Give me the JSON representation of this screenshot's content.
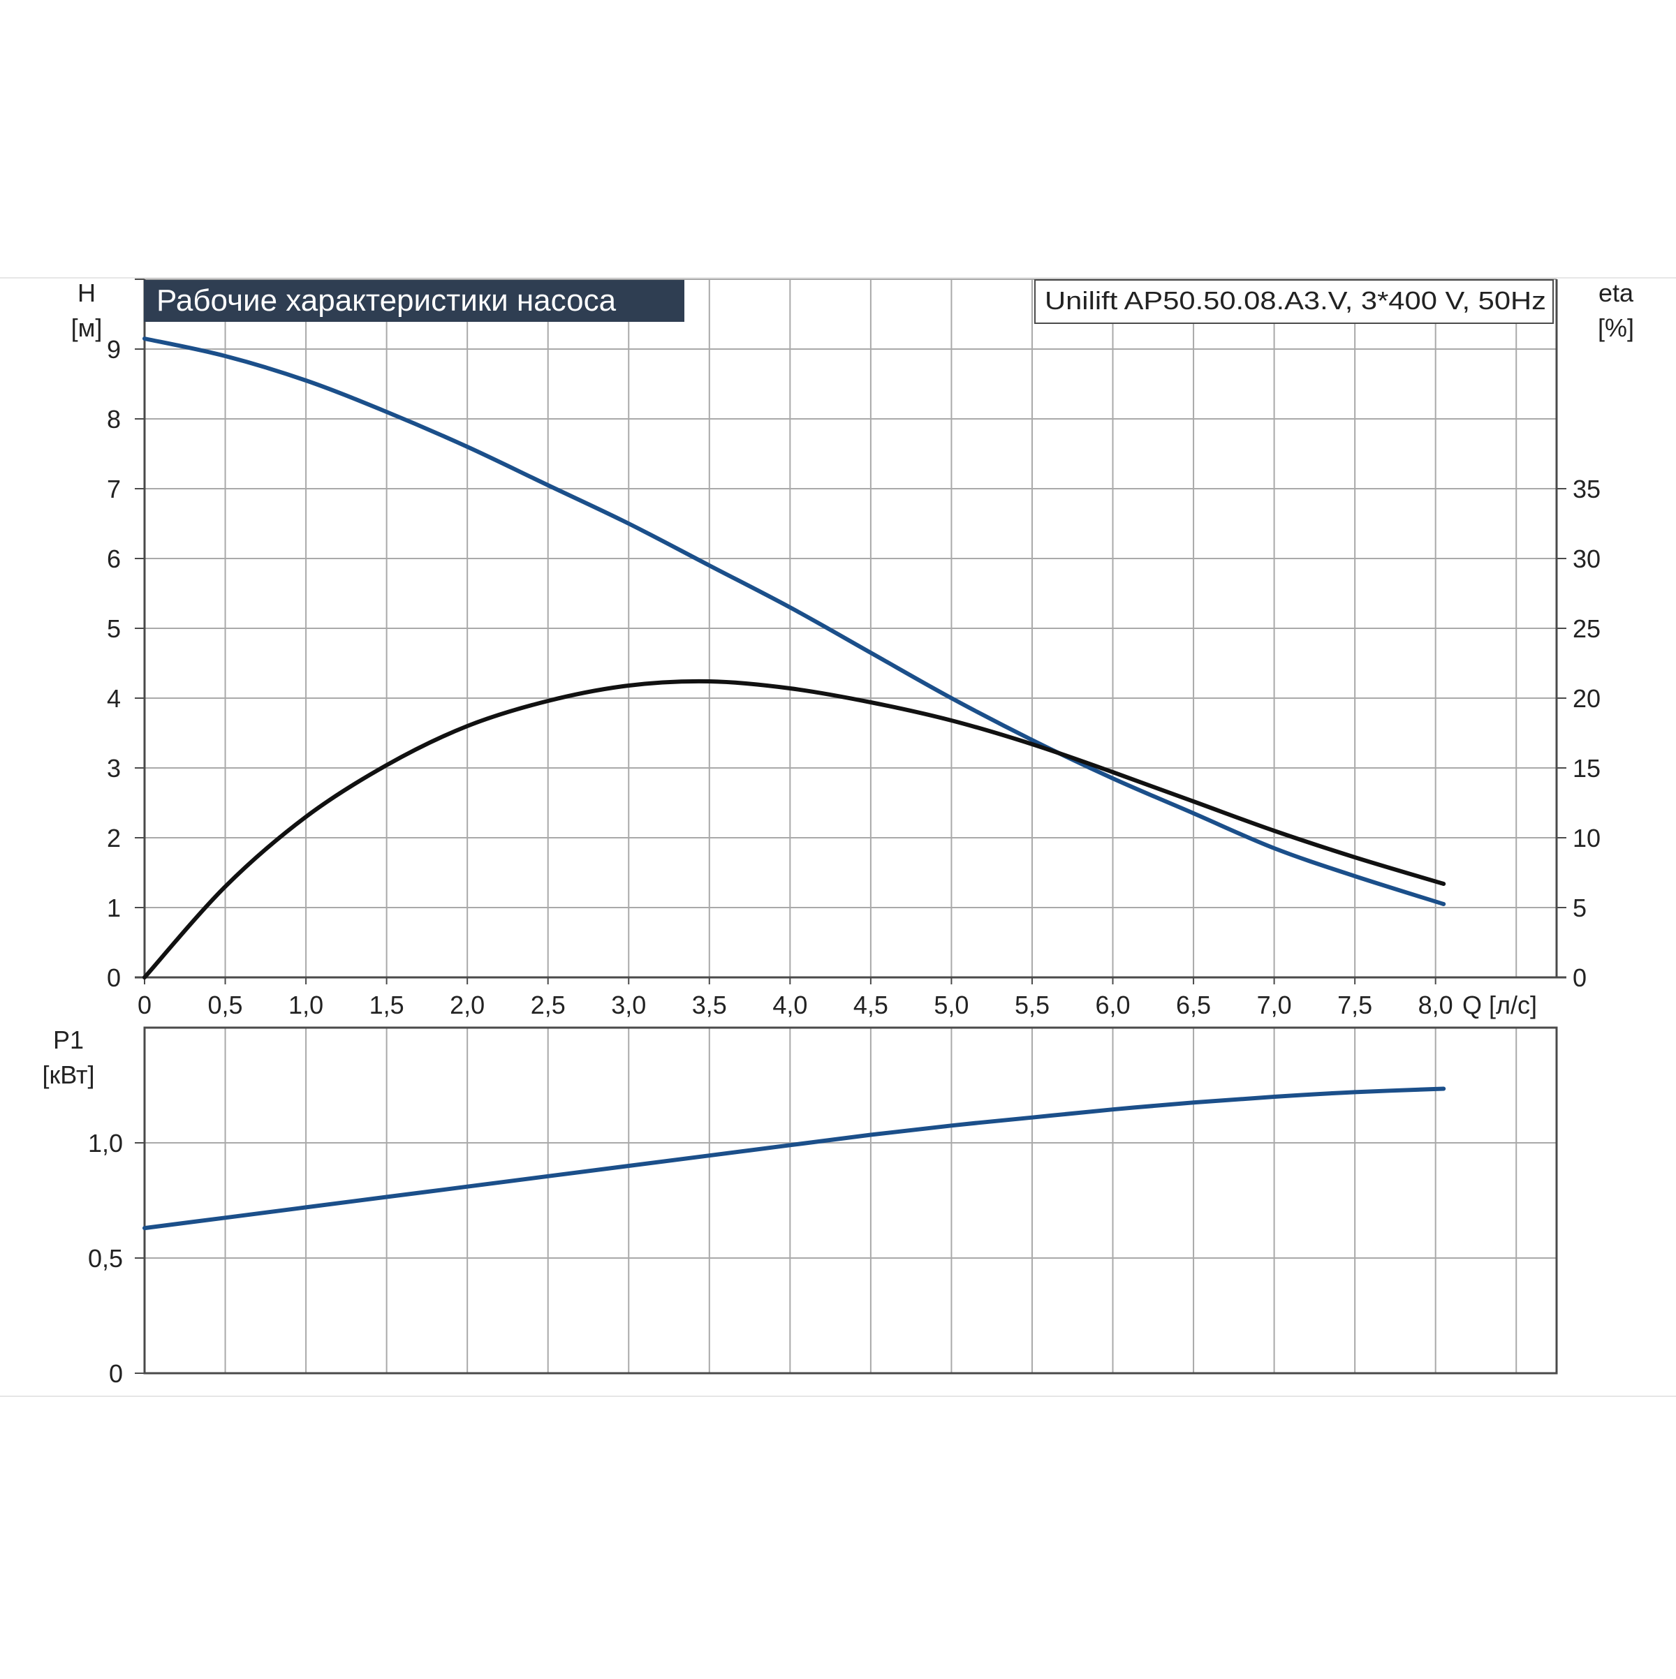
{
  "colors": {
    "background": "#ffffff",
    "grid": "#a9a9a9",
    "axis": "#4a4a4a",
    "title_bg": "#2f3e52",
    "title_text": "#ffffff",
    "head_curve": "#1b4f8a",
    "eta_curve": "#111111",
    "power_curve": "#1b4f8a"
  },
  "chart_data": [
    {
      "type": "line",
      "title": "Рабочие характеристики насоса",
      "subtitle": "Unilift AP50.50.08.A3.V, 3*400 V, 50Hz",
      "xlabel": "Q [л/с]",
      "ylabel": "H [м]",
      "ylabel_right": "eta [%]",
      "xlim": [
        0,
        8.75
      ],
      "ylim": [
        0,
        10
      ],
      "ylim_right": [
        0,
        50
      ],
      "grid": true,
      "x_ticks": [
        "0",
        "0,5",
        "1,0",
        "1,5",
        "2,0",
        "2,5",
        "3,0",
        "3,5",
        "4,0",
        "4,5",
        "5,0",
        "5,5",
        "6,0",
        "6,5",
        "7,0",
        "7,5",
        "8,0"
      ],
      "y_ticks": [
        "0",
        "1",
        "2",
        "3",
        "4",
        "5",
        "6",
        "7",
        "8",
        "9"
      ],
      "y_ticks_right": [
        "0",
        "5",
        "10",
        "15",
        "20",
        "25",
        "30",
        "35"
      ],
      "series": [
        {
          "axis": "left",
          "color": "#1b4f8a",
          "x": [
            0,
            0.5,
            1.0,
            1.5,
            2.0,
            2.5,
            3.0,
            3.5,
            4.0,
            4.5,
            5.0,
            5.5,
            6.0,
            6.5,
            7.0,
            7.5,
            8.05
          ],
          "y": [
            9.15,
            8.9,
            8.55,
            8.1,
            7.6,
            7.05,
            6.5,
            5.9,
            5.3,
            4.65,
            4.0,
            3.4,
            2.85,
            2.35,
            1.85,
            1.45,
            1.05
          ]
        },
        {
          "axis": "right",
          "color": "#111111",
          "x": [
            0,
            0.5,
            1.0,
            1.5,
            2.0,
            2.5,
            3.0,
            3.5,
            4.0,
            4.5,
            5.0,
            5.5,
            6.0,
            6.5,
            7.0,
            7.5,
            8.05
          ],
          "y": [
            0,
            6.5,
            11.5,
            15.2,
            18.0,
            19.8,
            20.9,
            21.2,
            20.7,
            19.7,
            18.4,
            16.7,
            14.7,
            12.6,
            10.5,
            8.6,
            6.7
          ]
        }
      ]
    },
    {
      "type": "line",
      "xlabel": "",
      "ylabel": "P1 [кВт]",
      "xlim": [
        0,
        8.75
      ],
      "ylim": [
        0,
        1.5
      ],
      "grid": true,
      "y_ticks": [
        "0",
        "0,5",
        "1,0"
      ],
      "series": [
        {
          "axis": "left",
          "color": "#1b4f8a",
          "x": [
            0,
            0.5,
            1.0,
            1.5,
            2.0,
            2.5,
            3.0,
            3.5,
            4.0,
            4.5,
            5.0,
            5.5,
            6.0,
            6.5,
            7.0,
            7.5,
            8.05
          ],
          "y": [
            0.63,
            0.675,
            0.72,
            0.765,
            0.81,
            0.855,
            0.9,
            0.945,
            0.99,
            1.035,
            1.075,
            1.11,
            1.145,
            1.175,
            1.2,
            1.22,
            1.235
          ]
        }
      ]
    }
  ]
}
